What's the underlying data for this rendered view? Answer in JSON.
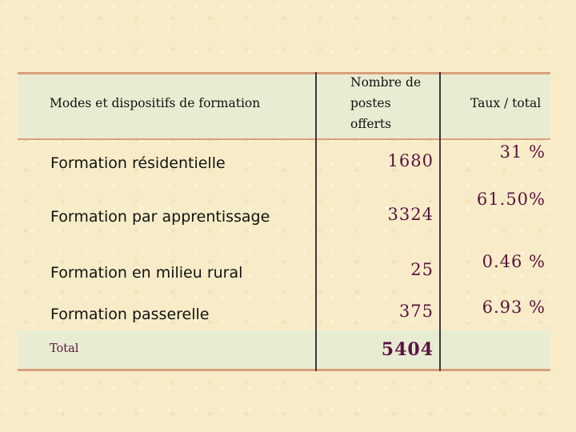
{
  "slide": {
    "title": ""
  },
  "table": {
    "columns": [
      "Modes et dispositifs de formation",
      "Nombre de postes offerts",
      "Taux / total"
    ],
    "header_col2_lines": [
      "Nombre de",
      "postes",
      "offerts"
    ],
    "rows": [
      {
        "mode": "Formation résidentielle",
        "postes": "1680",
        "taux": "31 %"
      },
      {
        "mode": "Formation par apprentissage",
        "postes": "3324",
        "taux": "61.50%"
      },
      {
        "mode": "Formation en milieu rural",
        "postes": "25",
        "taux": "0.46 %"
      },
      {
        "mode": "Formation passerelle",
        "postes": "375",
        "taux": "6.93 %"
      }
    ],
    "total": {
      "label": "Total",
      "postes": "5404",
      "taux": ""
    }
  },
  "colors": {
    "background": "#f8ecc8",
    "header_band": "#e8ecd2",
    "rule": "#d9a07a",
    "number_text": "#5a1240"
  }
}
